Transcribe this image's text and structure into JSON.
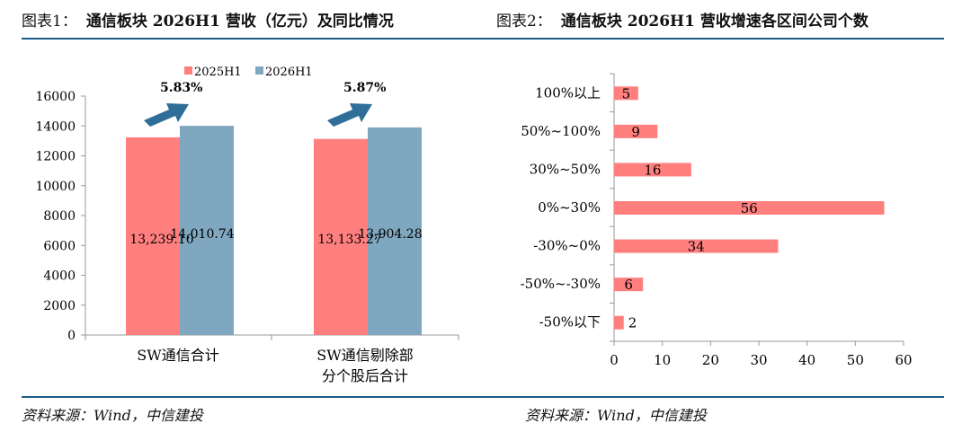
{
  "figure1": {
    "label": "图表1：",
    "title": "通信板块 2026H1 营收（亿元）及同比情况",
    "source": "资料来源：Wind，中信建投"
  },
  "figure2": {
    "label": "图表2：",
    "title": "通信板块 2026H1 营收增速各区间公司个数",
    "source": "资料来源：Wind，中信建投"
  },
  "colors": {
    "series_red": "#ff7f7f",
    "series_blue": "#7fa7bf",
    "arrow": "#2e6e99",
    "rule": "#1f5b86"
  },
  "chart_data": [
    {
      "type": "bar",
      "categories": [
        "SW通信合计",
        "SW通信剔除部\n分个股后合计"
      ],
      "series": [
        {
          "name": "2025H1",
          "values": [
            13239.1,
            13133.27
          ],
          "labels": [
            "13,239.10",
            "13,133.27"
          ]
        },
        {
          "name": "2026H1",
          "values": [
            14010.74,
            13904.28
          ],
          "labels": [
            "14,010.74",
            "13,904.28"
          ]
        }
      ],
      "growth_annotations": [
        "5.83%",
        "5.87%"
      ],
      "y_ticks": [
        "0",
        "2000",
        "4000",
        "6000",
        "8000",
        "10000",
        "12000",
        "14000",
        "16000"
      ],
      "ylim": [
        0,
        16000
      ],
      "legend_position": "top",
      "grid": false
    },
    {
      "type": "bar",
      "orientation": "horizontal",
      "categories": [
        "100%以上",
        "50%~100%",
        "30%~50%",
        "0%~30%",
        "-30%~0%",
        "-50%~-30%",
        "-50%以下"
      ],
      "values": [
        5,
        9,
        16,
        56,
        34,
        6,
        2
      ],
      "x_ticks": [
        "0",
        "10",
        "20",
        "30",
        "40",
        "50",
        "60"
      ],
      "xlim": [
        0,
        60
      ],
      "grid": false
    }
  ]
}
